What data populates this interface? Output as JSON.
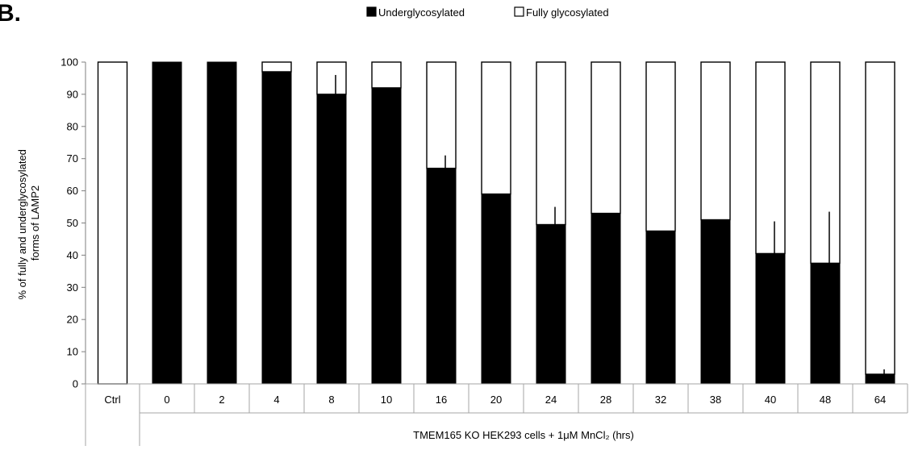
{
  "panel_label": "B.",
  "chart_data": {
    "type": "bar",
    "stacked": true,
    "percent": true,
    "categories": [
      "Ctrl",
      "0",
      "2",
      "4",
      "8",
      "10",
      "16",
      "20",
      "24",
      "28",
      "32",
      "38",
      "40",
      "48",
      "64"
    ],
    "group_label": "TMEM165 KO HEK293 cells + 1μM MnCl₂ (hrs)",
    "series": [
      {
        "name": "Underglycosylated",
        "color": "#000000",
        "values": [
          0,
          100,
          100,
          97,
          90,
          92,
          67,
          59,
          49.5,
          53,
          47.5,
          51,
          40.5,
          37.5,
          3
        ],
        "error_plus": [
          0,
          0,
          0,
          0,
          6,
          0,
          4,
          0,
          5.5,
          0,
          0,
          0,
          10,
          16,
          1.5
        ]
      },
      {
        "name": "Fully glycosylated",
        "color": "#ffffff",
        "values": [
          100,
          0,
          0,
          3,
          10,
          8,
          33,
          41,
          50.5,
          47,
          52.5,
          49,
          59.5,
          62.5,
          97
        ]
      }
    ],
    "ylabel": "% of fully and underglycosylated forms of LAMP2",
    "ylabel_lines": [
      "% of fully and underglycosylated",
      "forms of LAMP2"
    ],
    "ylim": [
      0,
      100
    ],
    "yticks": [
      0,
      10,
      20,
      30,
      40,
      50,
      60,
      70,
      80,
      90,
      100
    ],
    "grid": false,
    "legend": "top-center"
  }
}
